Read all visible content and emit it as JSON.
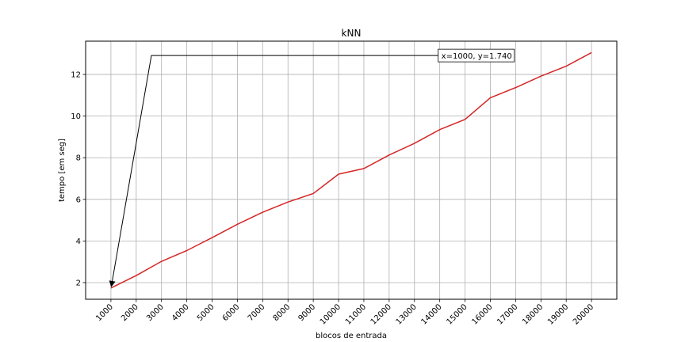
{
  "chart_data": {
    "type": "line",
    "title": "kNN",
    "xlabel": "blocos de entrada",
    "ylabel": "tempo [em seg]",
    "x": [
      1000,
      2000,
      3000,
      4000,
      5000,
      6000,
      7000,
      8000,
      9000,
      10000,
      11000,
      12000,
      13000,
      14000,
      15000,
      16000,
      17000,
      18000,
      19000,
      20000
    ],
    "x_tick_labels": [
      "1000",
      "2000",
      "3000",
      "4000",
      "5000",
      "6000",
      "7000",
      "8000",
      "9000",
      "10000",
      "11000",
      "12000",
      "13000",
      "14000",
      "15000",
      "16000",
      "17000",
      "18000",
      "19000",
      "20000"
    ],
    "series": [
      {
        "values": [
          1.74,
          2.34,
          3.02,
          3.54,
          4.16,
          4.8,
          5.38,
          5.87,
          6.28,
          7.21,
          7.48,
          8.13,
          8.69,
          9.35,
          9.84,
          10.88,
          11.37,
          11.92,
          12.4,
          13.05
        ],
        "color": "#d62728"
      }
    ],
    "xlim": [
      0,
      21000
    ],
    "ylim": [
      1.2,
      13.6
    ],
    "y_ticks": [
      2,
      4,
      6,
      8,
      10,
      12
    ],
    "y_tick_labels": [
      "2",
      "4",
      "6",
      "8",
      "10",
      "12"
    ],
    "grid": true,
    "annotation": {
      "text": "x=1000, y=1.740",
      "point": [
        1000,
        1.74
      ],
      "label_at": [
        14000,
        12.91
      ],
      "elbow_at": [
        2600,
        12.91
      ]
    }
  }
}
